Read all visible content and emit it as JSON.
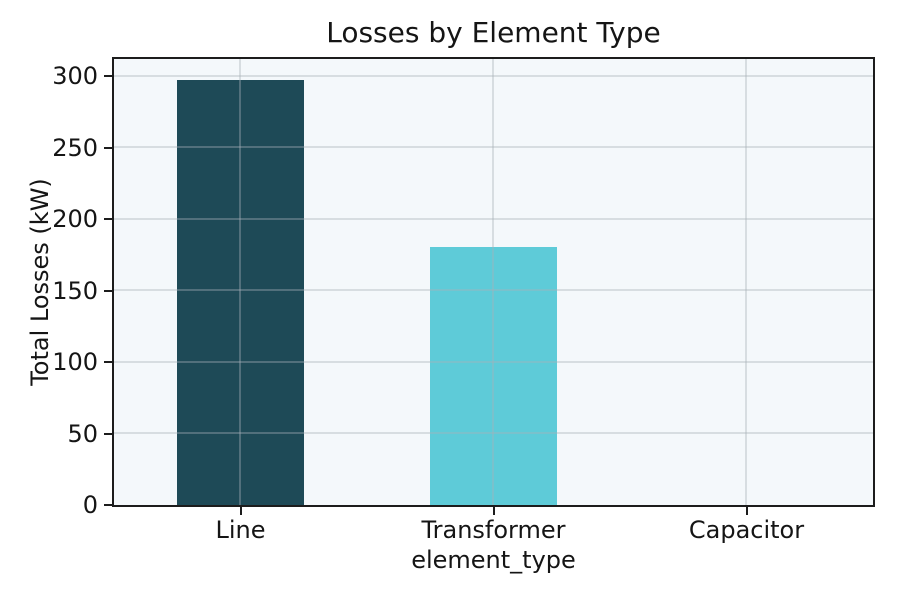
{
  "chart_data": {
    "type": "bar",
    "title": "Losses by Element Type",
    "xlabel": "element_type",
    "ylabel": "Total Losses (kW)",
    "categories": [
      "Line",
      "Transformer",
      "Capacitor"
    ],
    "values": [
      297,
      180.5,
      0
    ],
    "bar_colors": [
      "#1e4a57",
      "#5ecbd8",
      null
    ],
    "yticks": [
      0,
      50,
      100,
      150,
      200,
      250,
      300
    ],
    "ylim": [
      0,
      312
    ],
    "grid": true,
    "legend": false,
    "bar_width_fraction": 0.5,
    "plot_background": "#f4f8fb",
    "figure_background": "#ffffff",
    "spine_color": "#1c1c1c",
    "gridline_color": "#a8b0b8",
    "text_color": "#151515"
  }
}
